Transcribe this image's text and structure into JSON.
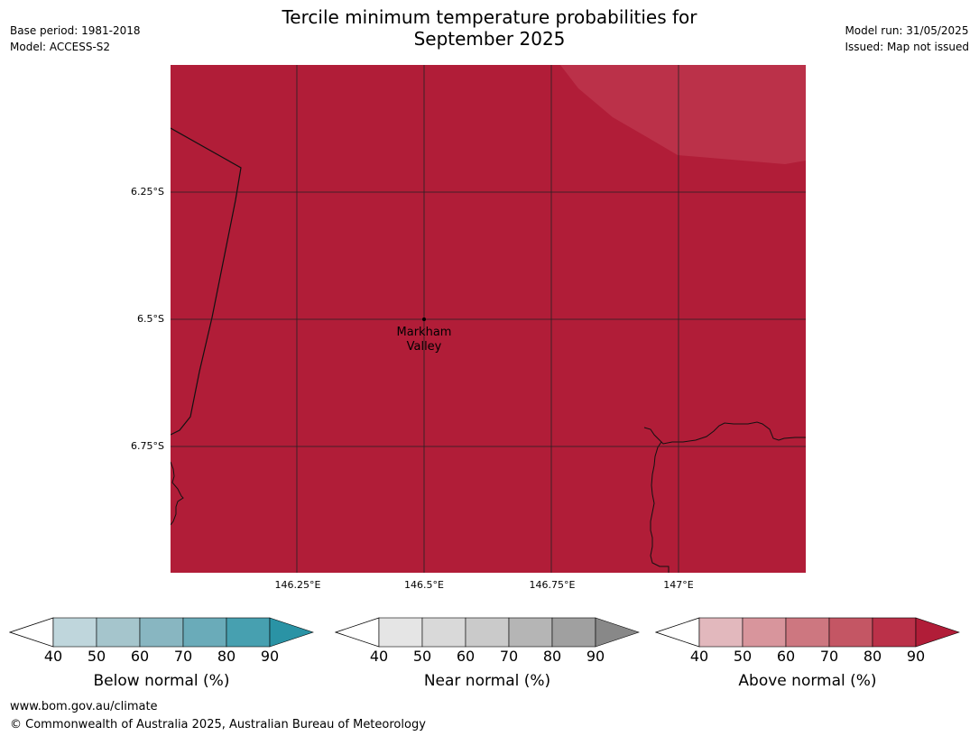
{
  "title_line1": "Tercile minimum temperature probabilities for",
  "title_line2": "September 2025",
  "meta_left": {
    "base_period": "Base period: 1981-2018",
    "model": "Model: ACCESS-S2"
  },
  "meta_right": {
    "model_run": "Model run: 31/05/2025",
    "issued": "Issued: Map not issued"
  },
  "map": {
    "place_label_line1": "Markham",
    "place_label_line2": "Valley",
    "fill_color": "#b11d38",
    "patch_color": "#bb3149",
    "lat_ticks": [
      "6.25°S",
      "6.5°S",
      "6.75°S"
    ],
    "lon_ticks": [
      "146.25°E",
      "146.5°E",
      "146.75°E",
      "147°E"
    ]
  },
  "colorbars": [
    {
      "label": "Below normal (%)",
      "ticks": [
        "40",
        "50",
        "60",
        "70",
        "80",
        "90"
      ],
      "colors": [
        "#bfd6dc",
        "#a5c5cc",
        "#88b6c1",
        "#6aabb9",
        "#47a0b0"
      ],
      "extend_color": "#2a93a5"
    },
    {
      "label": "Near normal (%)",
      "ticks": [
        "40",
        "50",
        "60",
        "70",
        "80",
        "90"
      ],
      "colors": [
        "#e5e5e5",
        "#d9d9d9",
        "#cacaca",
        "#b5b5b5",
        "#a0a0a0"
      ],
      "extend_color": "#888888"
    },
    {
      "label": "Above normal (%)",
      "ticks": [
        "40",
        "50",
        "60",
        "70",
        "80",
        "90"
      ],
      "colors": [
        "#e2b8bd",
        "#d8959c",
        "#cd7780",
        "#c45664",
        "#bb3149"
      ],
      "extend_color": "#b11d38"
    }
  ],
  "footer": {
    "url": "www.bom.gov.au/climate",
    "copyright": "© Commonwealth of Australia 2025, Australian Bureau of Meteorology"
  }
}
